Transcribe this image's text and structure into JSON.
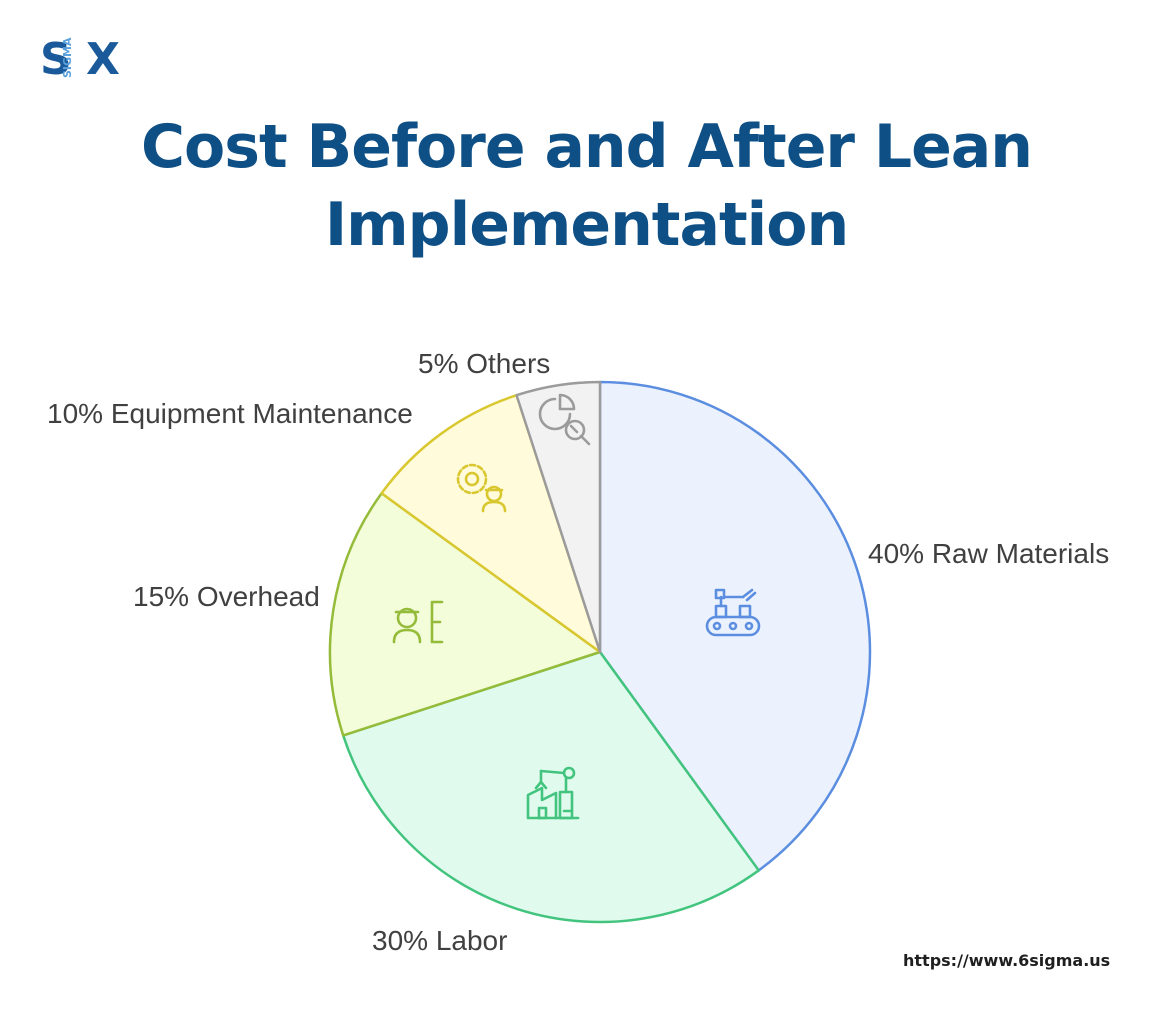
{
  "logo": {
    "left": "S",
    "middle": "SIGMA",
    "right": "X"
  },
  "title_line1": "Cost Before and After Lean",
  "title_line2": "Implementation",
  "url": "https://www.6sigma.us",
  "chart_data": {
    "type": "pie",
    "title": "Cost Before and After Lean Implementation",
    "unit": "%",
    "slices": [
      {
        "name": "Raw Materials",
        "value": 40,
        "label": "40% Raw Materials",
        "fill": "#ecf2fd",
        "stroke": "#5b8ee0",
        "icon": "conveyor-robot-icon"
      },
      {
        "name": "Labor",
        "value": 30,
        "label": "30% Labor",
        "fill": "#e0fbee",
        "stroke": "#43c47e",
        "icon": "factory-robot-arm-icon"
      },
      {
        "name": "Overhead",
        "value": 15,
        "label": "15% Overhead",
        "fill": "#f4fdd9",
        "stroke": "#94bb3a",
        "icon": "worker-ledger-icon"
      },
      {
        "name": "Equipment Maintenance",
        "value": 10,
        "label": "10% Equipment Maintenance",
        "fill": "#fffbdb",
        "stroke": "#d9c730",
        "icon": "gear-worker-icon"
      },
      {
        "name": "Others",
        "value": 5,
        "label": "5% Others",
        "fill": "#f2f2f2",
        "stroke": "#9b9b9b",
        "icon": "pie-magnifier-icon"
      }
    ]
  }
}
